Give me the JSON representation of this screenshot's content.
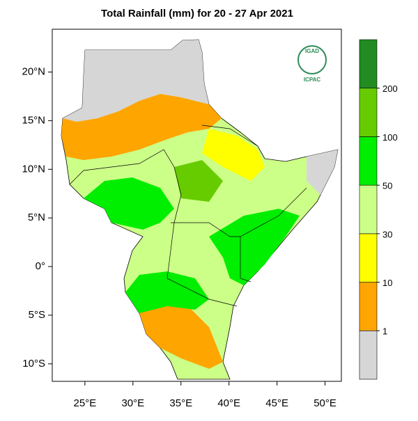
{
  "title": "Total Rainfall (mm) for 20 - 27 Apr 2021",
  "logo": {
    "name": "IGAD",
    "org": "ICPAC"
  },
  "axes": {
    "xlim": [
      21.6,
      51.7
    ],
    "ylim": [
      -11.8,
      24.4
    ],
    "xticks": [
      {
        "value": 25,
        "label": "25°E"
      },
      {
        "value": 30,
        "label": "30°E"
      },
      {
        "value": 35,
        "label": "35°E"
      },
      {
        "value": 40,
        "label": "40°E"
      },
      {
        "value": 45,
        "label": "45°E"
      },
      {
        "value": 50,
        "label": "50°E"
      }
    ],
    "yticks": [
      {
        "value": 20,
        "label": "20°N"
      },
      {
        "value": 15,
        "label": "15°N"
      },
      {
        "value": 10,
        "label": "10°N"
      },
      {
        "value": 5,
        "label": "5°N"
      },
      {
        "value": 0,
        "label": "0°"
      },
      {
        "value": -5,
        "label": "5°S"
      },
      {
        "value": -10,
        "label": "10°S"
      }
    ]
  },
  "legend": {
    "levels": [
      1,
      10,
      30,
      50,
      100,
      200
    ],
    "colors": [
      "#d6d6d6",
      "#ffa500",
      "#ffff00",
      "#ccff88",
      "#00ee00",
      "#66cc00",
      "#228b22"
    ]
  }
}
